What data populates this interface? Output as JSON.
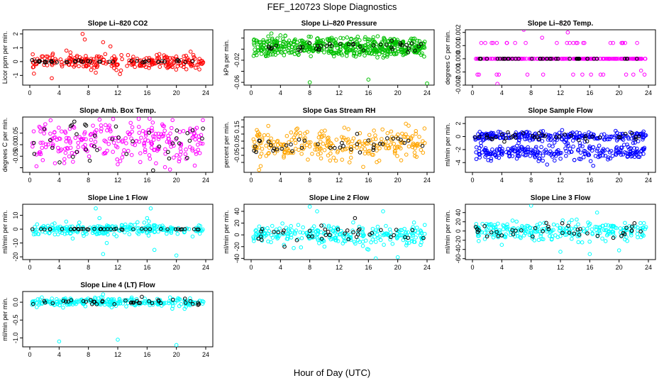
{
  "title": "FEF_120723  Slope Diagnostics",
  "xlabel": "Hour of Day (UTC)",
  "chart_data": [
    {
      "type": "scatter",
      "title": "Slope Li–820 CO2",
      "ylabel": "Licor ppm per min.",
      "xlim": [
        0,
        24
      ],
      "ylim": [
        -1.7,
        2.3
      ],
      "xticks": [
        0,
        4,
        8,
        12,
        16,
        20,
        24
      ],
      "yticks": [
        -1,
        0,
        1,
        2
      ],
      "ytick_labels": [
        "-1",
        "0",
        "1",
        "2"
      ],
      "series": [
        {
          "name": "all",
          "color": "#ff0000",
          "center": 0,
          "spread": 0.25,
          "outliers": [
            [
              7.2,
              2.0
            ],
            [
              7.5,
              1.6
            ],
            [
              10,
              1.4
            ],
            [
              12.3,
              -0.9
            ],
            [
              11,
              1.1
            ],
            [
              9,
              -0.8
            ],
            [
              3,
              -1.2
            ],
            [
              5,
              0.8
            ]
          ]
        },
        {
          "name": "flagged",
          "color": "#000000",
          "center": 0,
          "spread": 0.04
        }
      ]
    },
    {
      "type": "scatter",
      "title": "Slope Li–820 Pressure",
      "ylabel": "kPa per min.",
      "xlim": [
        0,
        24
      ],
      "ylim": [
        -0.065,
        0.035
      ],
      "xticks": [
        0,
        4,
        8,
        12,
        16,
        20,
        24
      ],
      "yticks": [
        -0.06,
        -0.04,
        -0.02,
        0,
        0.02
      ],
      "ytick_labels": [
        "-0.06",
        "",
        "-0.02",
        "",
        ""
      ],
      "series": [
        {
          "name": "all",
          "color": "#00c000",
          "center": 0.01,
          "spread": 0.006,
          "outliers": [
            [
              8,
              -0.06
            ],
            [
              16,
              -0.055
            ],
            [
              24,
              -0.062
            ],
            [
              4,
              0.025
            ]
          ]
        },
        {
          "name": "all-lower",
          "color": "#00c000",
          "center": -0.003,
          "spread": 0.005
        },
        {
          "name": "flagged",
          "color": "#000000",
          "center": 0.005,
          "spread": 0.006
        }
      ]
    },
    {
      "type": "scatter",
      "title": "Slope Li–820 Temp.",
      "ylabel": "degrees C per min.",
      "xlim": [
        0,
        24
      ],
      "ylim": [
        -0.002,
        0.0022
      ],
      "xticks": [
        0,
        4,
        8,
        12,
        16,
        20,
        24
      ],
      "yticks": [
        -0.002,
        -0.001,
        0,
        0.001,
        0.002
      ],
      "ytick_labels": [
        "-0.002",
        "-0.001",
        "0.000",
        "0.001",
        "0.002"
      ],
      "series": [
        {
          "name": "all",
          "color": "#ff00ff",
          "center": 0,
          "spread": 0,
          "levels": [
            0.0012,
            0,
            -0.0012
          ],
          "outliers": [
            [
              7,
              0.0022
            ],
            [
              3.4,
              -0.0019
            ],
            [
              9.5,
              0.0016
            ],
            [
              13,
              0.002
            ],
            [
              23,
              -0.0009
            ]
          ]
        },
        {
          "name": "flagged",
          "color": "#000000",
          "center": 0,
          "spread": 0
        }
      ]
    },
    {
      "type": "scatter",
      "title": "Slope Amb. Box Temp.",
      "ylabel": "degrees C per min.",
      "xlim": [
        0,
        24
      ],
      "ylim": [
        -0.12,
        0.12
      ],
      "xticks": [
        0,
        4,
        8,
        12,
        16,
        20,
        24
      ],
      "yticks": [
        -0.1,
        -0.05,
        0,
        0.05
      ],
      "ytick_labels": [
        "",
        "-0.05",
        "0.00",
        "0.05"
      ],
      "series": [
        {
          "name": "all",
          "color": "#ff00ff",
          "center": 0.01,
          "spread": 0.045
        },
        {
          "name": "flagged",
          "color": "#000000",
          "center": 0,
          "spread": 0.05
        }
      ]
    },
    {
      "type": "scatter",
      "title": "Slope Gas Stream RH",
      "ylabel": "percent per min.",
      "xlim": [
        0,
        24
      ],
      "ylim": [
        -0.17,
        0.22
      ],
      "xticks": [
        0,
        4,
        8,
        12,
        16,
        20,
        24
      ],
      "yticks": [
        -0.1,
        -0.05,
        0,
        0.05,
        0.1,
        0.15,
        0.2
      ],
      "ytick_labels": [
        "",
        "-0.05",
        "",
        "0.05",
        "",
        "0.15",
        ""
      ],
      "series": [
        {
          "name": "all",
          "color": "#ffa500",
          "center": 0.03,
          "spread": 0.055
        },
        {
          "name": "flagged",
          "color": "#000000",
          "center": 0.02,
          "spread": 0.03
        }
      ]
    },
    {
      "type": "scatter",
      "title": "Slope Sample Flow",
      "ylabel": "ml/min per min.",
      "xlim": [
        0,
        24
      ],
      "ylim": [
        -5.5,
        3
      ],
      "xticks": [
        0,
        4,
        8,
        12,
        16,
        20,
        24
      ],
      "yticks": [
        -4,
        -2,
        0,
        2
      ],
      "ytick_labels": [
        "-4",
        "-2",
        "0",
        "2"
      ],
      "series": [
        {
          "name": "all",
          "color": "#0000ff",
          "center": 0,
          "spread": 0.4
        },
        {
          "name": "all-lower",
          "color": "#0000ff",
          "center": -2.5,
          "spread": 0.6
        },
        {
          "name": "flagged",
          "color": "#000000",
          "center": 0,
          "spread": 0.3
        }
      ]
    },
    {
      "type": "scatter",
      "title": "Slope Line 1 Flow",
      "ylabel": "ml/min per min.",
      "xlim": [
        0,
        24
      ],
      "ylim": [
        -22,
        18
      ],
      "xticks": [
        0,
        4,
        8,
        12,
        16,
        20,
        24
      ],
      "yticks": [
        -20,
        -10,
        0,
        10
      ],
      "ytick_labels": [
        "-20",
        "-10",
        "0",
        "10"
      ],
      "series": [
        {
          "name": "all",
          "color": "#00ffff",
          "center": 0,
          "spread": 2,
          "outliers": [
            [
              9,
              15
            ],
            [
              10,
              -18
            ],
            [
              16.5,
              15
            ],
            [
              17,
              -15
            ],
            [
              20,
              -19
            ],
            [
              9.5,
              8
            ],
            [
              10.5,
              -10
            ],
            [
              16,
              8
            ]
          ]
        },
        {
          "name": "flagged",
          "color": "#000000",
          "center": 0,
          "spread": 0.2
        }
      ]
    },
    {
      "type": "scatter",
      "title": "Slope Line 2 Flow",
      "ylabel": "ml/min per min.",
      "xlim": [
        0,
        24
      ],
      "ylim": [
        -42,
        52
      ],
      "xticks": [
        0,
        4,
        8,
        12,
        16,
        20,
        24
      ],
      "yticks": [
        -40,
        -20,
        0,
        20,
        40
      ],
      "ytick_labels": [
        "-40",
        "-20",
        "0",
        "20",
        "40"
      ],
      "series": [
        {
          "name": "all",
          "color": "#00ffff",
          "center": 0,
          "spread": 8,
          "outliers": [
            [
              8,
              48
            ],
            [
              9,
              40
            ],
            [
              17,
              -40
            ],
            [
              18,
              40
            ],
            [
              16,
              -25
            ],
            [
              20,
              -38
            ],
            [
              10,
              -20
            ]
          ]
        },
        {
          "name": "flagged",
          "color": "#000000",
          "center": 0,
          "spread": 8
        }
      ]
    },
    {
      "type": "scatter",
      "title": "Slope Line 3 Flow",
      "ylabel": "ml/min per min.",
      "xlim": [
        0,
        24
      ],
      "ylim": [
        -62,
        58
      ],
      "xticks": [
        0,
        4,
        8,
        12,
        16,
        20,
        24
      ],
      "yticks": [
        -60,
        -40,
        -20,
        0,
        20,
        40
      ],
      "ytick_labels": [
        "-60",
        "-40",
        "-20",
        "0",
        "20",
        "40"
      ],
      "series": [
        {
          "name": "all",
          "color": "#00ffff",
          "center": 0,
          "spread": 10,
          "outliers": [
            [
              8,
              55
            ],
            [
              12,
              -45
            ],
            [
              17,
              40
            ],
            [
              16,
              -50
            ],
            [
              20,
              -42
            ],
            [
              4,
              -30
            ]
          ]
        },
        {
          "name": "flagged",
          "color": "#000000",
          "center": 0,
          "spread": 8
        }
      ]
    },
    {
      "type": "scatter",
      "title": "Slope Line 4 (LT) Flow",
      "ylabel": "ml/min per min.",
      "xlim": [
        0,
        24
      ],
      "ylim": [
        -1.25,
        0.3
      ],
      "xticks": [
        0,
        4,
        8,
        12,
        16,
        20,
        24
      ],
      "yticks": [
        -1,
        -0.5,
        0
      ],
      "ytick_labels": [
        "-1.0",
        "-0.5",
        "0.0"
      ],
      "series": [
        {
          "name": "all",
          "color": "#00ffff",
          "center": 0,
          "spread": 0.06,
          "outliers": [
            [
              4,
              -1.1
            ],
            [
              12,
              -1.05
            ],
            [
              20,
              -1.2
            ],
            [
              10,
              0.22
            ]
          ]
        },
        {
          "name": "flagged",
          "color": "#000000",
          "center": 0,
          "spread": 0.04
        }
      ]
    }
  ]
}
